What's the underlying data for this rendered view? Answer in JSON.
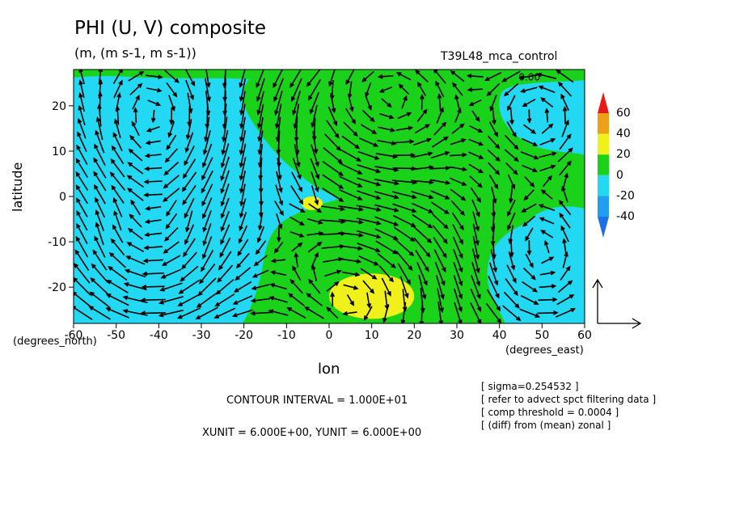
{
  "title": "PHI (U, V) composite",
  "units_line": "(m, (m s-1, m s-1))",
  "run_name": "T39L48_mca_control",
  "contour_inline_label": "0.00",
  "ylabel": "latitude",
  "xlabel": "lon",
  "y_unit_label": "(degrees_north)",
  "x_unit_label": "(degrees_east)",
  "contour_interval_text": "CONTOUR INTERVAL = 1.000E+01",
  "vector_unit_text": "XUNIT = 6.000E+00, YUNIT = 6.000E+00",
  "notes": [
    "[ sigma=0.254532 ]",
    "[ refer to advect spct filtering data ]",
    "[ comp threshold = 0.0004 ]",
    "[ (diff) from (mean) zonal ]"
  ],
  "colors": {
    "below_minus40": "#1f6fe8",
    "minus40_to_minus20": "#1f9ff2",
    "minus20_to_0": "#22d8f2",
    "0_to_20": "#1bd21b",
    "20_to_40": "#f0f01a",
    "40_to_60": "#f0a018",
    "above_60": "#e81a1a",
    "arrow": "#000000"
  },
  "chart_data": {
    "type": "heatmap",
    "variable": "PHI with (U, V) wind vectors",
    "x_ticks": [
      "-60",
      "-50",
      "-40",
      "-30",
      "-20",
      "-10",
      "0",
      "10",
      "20",
      "30",
      "40",
      "50",
      "60"
    ],
    "y_ticks": [
      "20",
      "10",
      "0",
      "-10",
      "-20"
    ],
    "xlim": [
      -60,
      60
    ],
    "ylim": [
      -28,
      28
    ],
    "colorbar": {
      "levels": [
        "60",
        "40",
        "20",
        "0",
        "-20",
        "-40"
      ],
      "extend": "both"
    },
    "contours": [
      {
        "level": "0 to 20",
        "shape": "ellipse",
        "center": [
          10,
          20
        ],
        "radii": [
          18,
          9
        ]
      },
      {
        "level": "-20 to 0",
        "shape": "ellipse",
        "center": [
          -40,
          14
        ],
        "radii": [
          12,
          10
        ]
      },
      {
        "level": "-20 to 0",
        "shape": "ellipse",
        "center": [
          52,
          -15
        ],
        "radii": [
          12,
          10
        ]
      },
      {
        "level": "20 to 40",
        "shape": "ellipse",
        "center": [
          10,
          -22
        ],
        "radii": [
          10,
          5
        ]
      },
      {
        "level": "20 to 40",
        "shape": "ellipse",
        "center": [
          -4,
          -1.5
        ],
        "radii": [
          2.5,
          1.5
        ]
      }
    ],
    "vortices": [
      {
        "center": [
          10,
          20
        ],
        "sense": "counterclockwise",
        "radius": 18
      },
      {
        "center": [
          -40,
          14
        ],
        "sense": "clockwise",
        "radius": 14
      },
      {
        "center": [
          50,
          -16
        ],
        "sense": "counterclockwise",
        "radius": 14
      },
      {
        "center": [
          52,
          20
        ],
        "sense": "counterclockwise",
        "radius": 12
      },
      {
        "center": [
          8,
          -20
        ],
        "sense": "clockwise",
        "radius": 14
      },
      {
        "center": [
          -42,
          -16
        ],
        "sense": "clockwise",
        "radius": 14
      }
    ],
    "background_flow": "westward in the west half, converging near lon -5, lat 0",
    "reference_vector": {
      "xunit": 6.0,
      "yunit": 6.0
    }
  }
}
